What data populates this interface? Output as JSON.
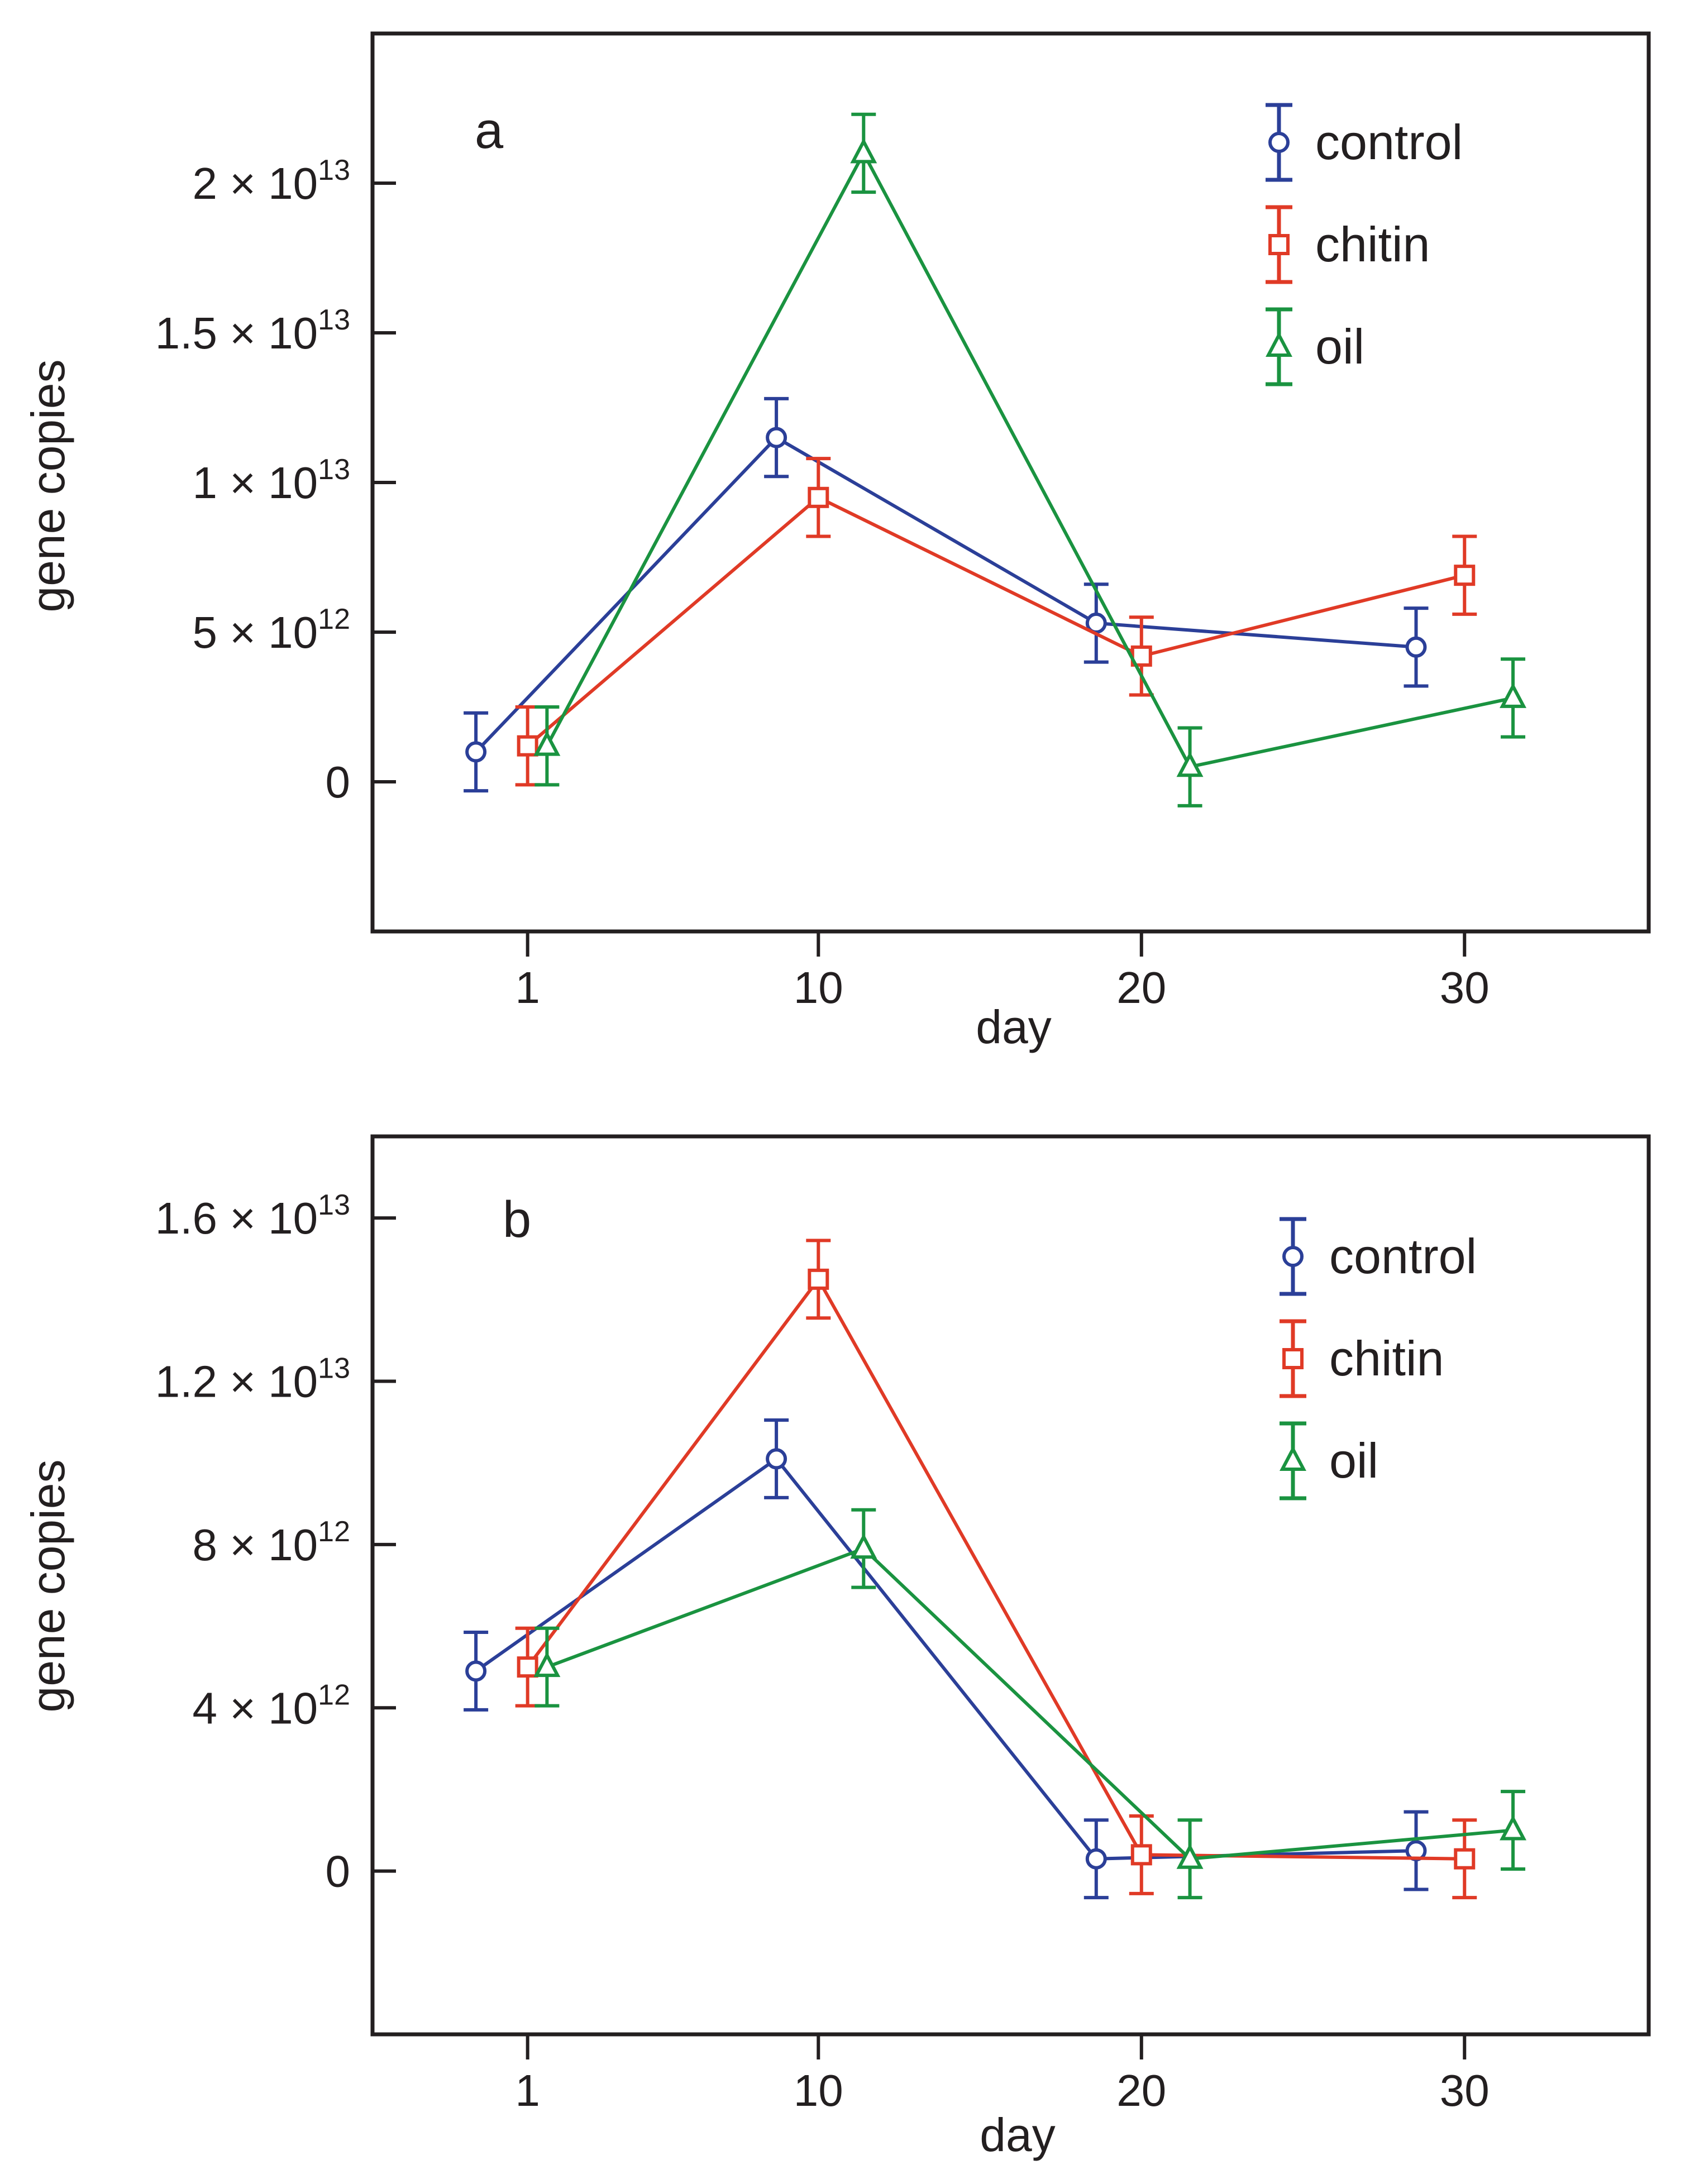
{
  "chart_data": [
    {
      "panel": "a",
      "type": "line",
      "title": "",
      "xlabel": "day",
      "ylabel": "gene copies",
      "x_ticks": [
        {
          "value": 1,
          "label": "1"
        },
        {
          "value": 10,
          "label": "10"
        },
        {
          "value": 20,
          "label": "20"
        },
        {
          "value": 30,
          "label": "30"
        }
      ],
      "y_ticks": [
        {
          "value": 0,
          "label": "0"
        },
        {
          "value": 5000000000000.0,
          "label": "5 × 10",
          "exp": "12"
        },
        {
          "value": 10000000000000.0,
          "label": "1 × 10",
          "exp": "13"
        },
        {
          "value": 15000000000000.0,
          "label": "1.5 × 10",
          "exp": "13"
        },
        {
          "value": 20000000000000.0,
          "label": "2 × 10",
          "exp": "13"
        }
      ],
      "xlim": [
        -3.8,
        35.7
      ],
      "ylim": [
        -5000000000000.0,
        25000000000000.0
      ],
      "legend_position": "top-right",
      "series": [
        {
          "name": "control",
          "color": "#2b3f98",
          "marker": "circle",
          "x": [
            -0.6,
            8.7,
            18.6,
            28.5
          ],
          "y": [
            1000000000000.0,
            11500000000000.0,
            5300000000000.0,
            4500000000000.0
          ],
          "err": [
            1300000000000.0,
            1300000000000.0,
            1300000000000.0,
            1300000000000.0
          ]
        },
        {
          "name": "chitin",
          "color": "#e03a26",
          "marker": "square",
          "x": [
            1.0,
            10.0,
            20.0,
            30.0
          ],
          "y": [
            1200000000000.0,
            9500000000000.0,
            4200000000000.0,
            6900000000000.0
          ],
          "err": [
            1300000000000.0,
            1300000000000.0,
            1300000000000.0,
            1300000000000.0
          ]
        },
        {
          "name": "oil",
          "color": "#1a9340",
          "marker": "triangle",
          "x": [
            1.6,
            11.4,
            21.5,
            31.5
          ],
          "y": [
            1200000000000.0,
            21000000000000.0,
            500000000000.0,
            2800000000000.0
          ],
          "err": [
            1300000000000.0,
            1300000000000.0,
            1300000000000.0,
            1300000000000.0
          ]
        }
      ]
    },
    {
      "panel": "b",
      "type": "line",
      "title": "",
      "xlabel": "day",
      "ylabel": "gene copies",
      "x_ticks": [
        {
          "value": 1,
          "label": "1"
        },
        {
          "value": 10,
          "label": "10"
        },
        {
          "value": 20,
          "label": "20"
        },
        {
          "value": 30,
          "label": "30"
        }
      ],
      "y_ticks": [
        {
          "value": 0,
          "label": "0"
        },
        {
          "value": 4000000000000.0,
          "label": "4 × 10",
          "exp": "12"
        },
        {
          "value": 8000000000000.0,
          "label": "8 × 10",
          "exp": "12"
        },
        {
          "value": 12000000000000.0,
          "label": "1.2 × 10",
          "exp": "13"
        },
        {
          "value": 16000000000000.0,
          "label": "1.6 × 10",
          "exp": "13"
        }
      ],
      "xlim": [
        -3.8,
        35.7
      ],
      "ylim": [
        -4000000000000.0,
        18000000000000.0
      ],
      "legend_position": "top-right",
      "series": [
        {
          "name": "control",
          "color": "#2b3f98",
          "marker": "circle",
          "x": [
            -0.6,
            8.7,
            18.6,
            28.5
          ],
          "y": [
            4900000000000.0,
            10100000000000.0,
            300000000000.0,
            500000000000.0
          ],
          "err": [
            950000000000.0,
            950000000000.0,
            950000000000.0,
            950000000000.0
          ]
        },
        {
          "name": "chitin",
          "color": "#e03a26",
          "marker": "square",
          "x": [
            1.0,
            10.0,
            20.0,
            30.0
          ],
          "y": [
            5000000000000.0,
            14500000000000.0,
            400000000000.0,
            300000000000.0
          ],
          "err": [
            950000000000.0,
            950000000000.0,
            950000000000.0,
            950000000000.0
          ]
        },
        {
          "name": "oil",
          "color": "#1a9340",
          "marker": "triangle",
          "x": [
            1.6,
            11.4,
            21.5,
            31.5
          ],
          "y": [
            5000000000000.0,
            7900000000000.0,
            300000000000.0,
            1000000000000.0
          ],
          "err": [
            950000000000.0,
            950000000000.0,
            950000000000.0,
            950000000000.0
          ]
        }
      ]
    }
  ]
}
